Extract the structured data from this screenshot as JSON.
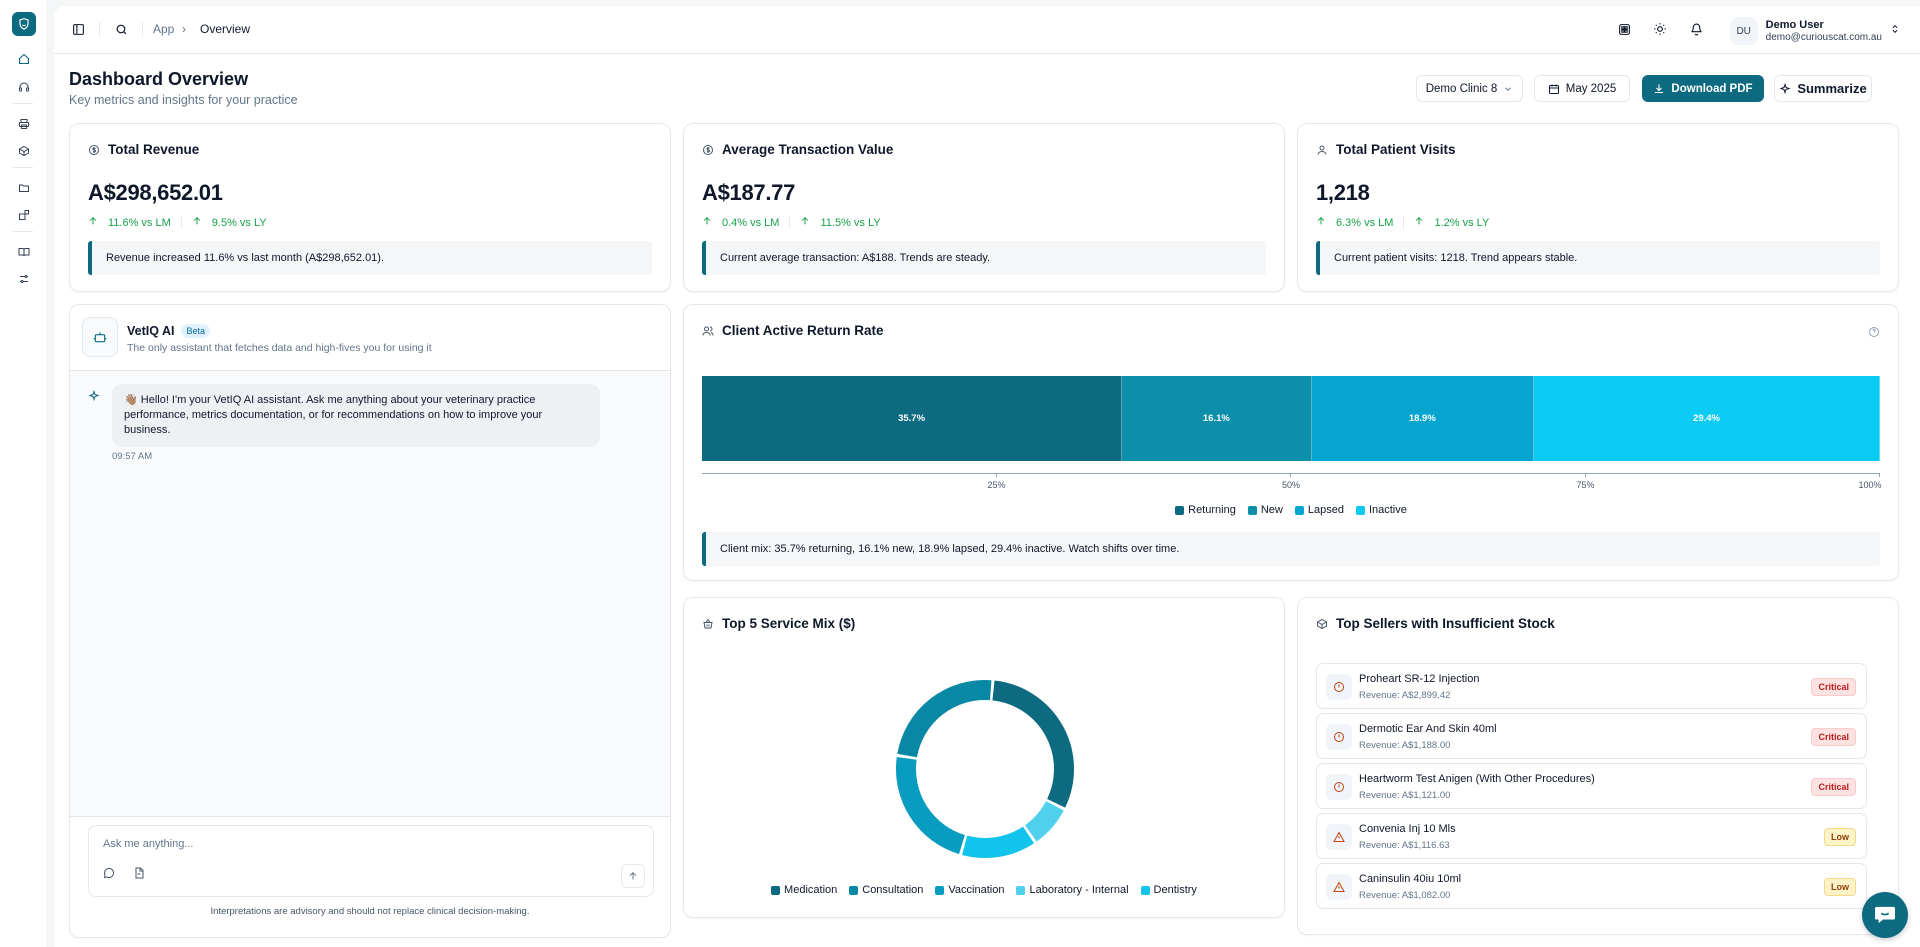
{
  "rail": {
    "items": [
      "home-icon",
      "headset-icon",
      "printer-icon",
      "box-icon",
      "folder-icon",
      "blocks-icon",
      "book-icon",
      "sliders-icon"
    ]
  },
  "topbar": {
    "breadcrumb": [
      "App",
      "Overview"
    ],
    "user": {
      "initials": "DU",
      "name": "Demo User",
      "email": "demo@curiouscat.com.au"
    }
  },
  "page": {
    "title": "Dashboard Overview",
    "subtitle": "Key metrics and insights for your practice",
    "clinic_select": "Demo Clinic 8",
    "month": "May 2025",
    "download_label": "Download PDF",
    "summarize_label": "Summarize"
  },
  "kpis": [
    {
      "title": "Total Revenue",
      "icon": "dollar-icon",
      "value": "A$298,652.01",
      "delta_lm": "11.6% vs LM",
      "delta_ly": "9.5% vs LY",
      "note": "Revenue increased 11.6% vs last month (A$298,652.01)."
    },
    {
      "title": "Average Transaction Value",
      "icon": "dollar-icon",
      "value": "A$187.77",
      "delta_lm": "0.4% vs LM",
      "delta_ly": "11.5% vs LY",
      "note": "Current average transaction: A$188. Trends are steady."
    },
    {
      "title": "Total Patient Visits",
      "icon": "user-icon",
      "value": "1,218",
      "delta_lm": "6.3% vs LM",
      "delta_ly": "1.2% vs LY",
      "note": "Current patient visits: 1218. Trend appears stable."
    }
  ],
  "chat": {
    "name": "VetIQ AI",
    "badge": "Beta",
    "tagline": "The only assistant that fetches data and high-fives you for using it",
    "message": "👋🏽 Hello! I'm your VetIQ AI assistant. Ask me anything about your veterinary practice performance, metrics documentation, or for recommendations on how to improve your business.",
    "time": "09:57 AM",
    "placeholder": "Ask me anything...",
    "disclaimer": "Interpretations are advisory and should not replace clinical decision-making."
  },
  "return_rate": {
    "title": "Client Active Return Rate",
    "note": "Client mix: 35.7% returning, 16.1% new, 18.9% lapsed, 29.4% inactive. Watch shifts over time."
  },
  "service_mix": {
    "title": "Top 5 Service Mix ($)"
  },
  "stock": {
    "title": "Top Sellers with Insufficient Stock",
    "items": [
      {
        "name": "Proheart SR-12 Injection",
        "revenue": "Revenue: A$2,899.42",
        "status": "Critical"
      },
      {
        "name": "Dermotic Ear And Skin 40ml",
        "revenue": "Revenue: A$1,188.00",
        "status": "Critical"
      },
      {
        "name": "Heartworm Test Anigen (With Other Procedures)",
        "revenue": "Revenue: A$1,121.00",
        "status": "Critical"
      },
      {
        "name": "Convenia Inj 10 Mls",
        "revenue": "Revenue: A$1,116.63",
        "status": "Low"
      },
      {
        "name": "Caninsulin 40iu 10ml",
        "revenue": "Revenue: A$1,082.00",
        "status": "Low"
      }
    ]
  },
  "colors": {
    "accent": "#0e6a80",
    "positive": "#16a34a",
    "critical": "#b91c1c",
    "low": "#92400e"
  },
  "chart_data": [
    {
      "type": "bar",
      "stacked": true,
      "orientation": "horizontal",
      "title": "Client Active Return Rate",
      "series": [
        {
          "name": "Returning",
          "value": 35.7,
          "label": "35.7%",
          "color": "#0e6a80"
        },
        {
          "name": "New",
          "value": 16.1,
          "label": "16.1%",
          "color": "#0b8fab"
        },
        {
          "name": "Lapsed",
          "value": 18.9,
          "label": "18.9%",
          "color": "#06a5cf"
        },
        {
          "name": "Inactive",
          "value": 29.4,
          "label": "29.4%",
          "color": "#0ccbf3"
        }
      ],
      "xlim": [
        0,
        100
      ],
      "ticks": [
        "25%",
        "50%",
        "75%",
        "100%"
      ],
      "tick_values": [
        25,
        50,
        75,
        100
      ],
      "legend": "bottom"
    },
    {
      "type": "pie",
      "donut": true,
      "title": "Top 5 Service Mix ($)",
      "series": [
        {
          "name": "Medication",
          "value": 31,
          "color": "#0e6a80"
        },
        {
          "name": "Laboratory - Internal",
          "value": 8,
          "color": "#4fd1ee"
        },
        {
          "name": "Dentistry",
          "value": 14,
          "color": "#12c3ec"
        },
        {
          "name": "Vaccination",
          "value": 23,
          "color": "#079cc0"
        },
        {
          "name": "Consultation",
          "value": 24,
          "color": "#0988a6"
        }
      ],
      "legend_order": [
        "Medication",
        "Consultation",
        "Vaccination",
        "Laboratory - Internal",
        "Dentistry"
      ],
      "legend": "bottom"
    }
  ]
}
